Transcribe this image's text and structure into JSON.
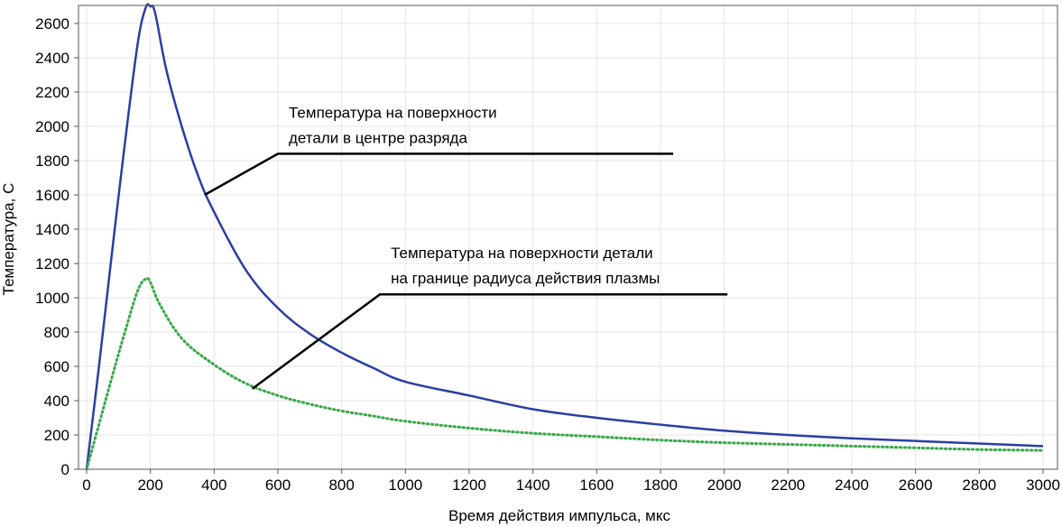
{
  "chart_data": {
    "type": "line",
    "title": "",
    "xlabel": "Время действия импульса, мкс",
    "ylabel": "Температура, С",
    "xlim": [
      0,
      3000
    ],
    "ylim": [
      0,
      2700
    ],
    "x_ticks": [
      "0",
      "200",
      "400",
      "600",
      "800",
      "1000",
      "1200",
      "1400",
      "1600",
      "1800",
      "2000",
      "2200",
      "2400",
      "2600",
      "2800",
      "3000"
    ],
    "y_ticks": [
      "0",
      "200",
      "400",
      "600",
      "800",
      "1000",
      "1200",
      "1400",
      "1600",
      "1800",
      "2000",
      "2200",
      "2400",
      "2600"
    ],
    "grid": true,
    "series": [
      {
        "color": "#2b3ea4",
        "style": "solid",
        "points": [
          [
            0,
            0
          ],
          [
            40,
            620
          ],
          [
            80,
            1270
          ],
          [
            120,
            1900
          ],
          [
            160,
            2480
          ],
          [
            185,
            2690
          ],
          [
            200,
            2700
          ],
          [
            215,
            2660
          ],
          [
            250,
            2330
          ],
          [
            300,
            1990
          ],
          [
            350,
            1710
          ],
          [
            400,
            1500
          ],
          [
            500,
            1160
          ],
          [
            600,
            940
          ],
          [
            700,
            790
          ],
          [
            800,
            680
          ],
          [
            900,
            590
          ],
          [
            1000,
            510
          ],
          [
            1200,
            430
          ],
          [
            1400,
            350
          ],
          [
            1600,
            300
          ],
          [
            1800,
            260
          ],
          [
            2000,
            225
          ],
          [
            2200,
            200
          ],
          [
            2400,
            180
          ],
          [
            2600,
            165
          ],
          [
            2800,
            150
          ],
          [
            3000,
            135
          ]
        ]
      },
      {
        "color": "#3aa84a",
        "style": "dotted",
        "points": [
          [
            0,
            0
          ],
          [
            40,
            270
          ],
          [
            80,
            540
          ],
          [
            120,
            800
          ],
          [
            160,
            1040
          ],
          [
            185,
            1110
          ],
          [
            200,
            1090
          ],
          [
            230,
            960
          ],
          [
            300,
            760
          ],
          [
            400,
            610
          ],
          [
            500,
            500
          ],
          [
            600,
            430
          ],
          [
            700,
            380
          ],
          [
            800,
            340
          ],
          [
            900,
            310
          ],
          [
            1000,
            280
          ],
          [
            1200,
            240
          ],
          [
            1400,
            210
          ],
          [
            1600,
            190
          ],
          [
            1800,
            170
          ],
          [
            2000,
            155
          ],
          [
            2200,
            145
          ],
          [
            2400,
            135
          ],
          [
            2600,
            125
          ],
          [
            2800,
            115
          ],
          [
            3000,
            110
          ]
        ]
      }
    ],
    "annotations": [
      {
        "lines": [
          "Температура на поверхности",
          "детали в центре разряда"
        ],
        "target": [
          370,
          1600
        ],
        "elbow": [
          600,
          1840
        ],
        "end": [
          1840,
          1840
        ]
      },
      {
        "lines": [
          "Температура на поверхности детали",
          "на границе радиуса действия плазмы"
        ],
        "target": [
          520,
          470
        ],
        "elbow": [
          920,
          1020
        ],
        "end": [
          2010,
          1020
        ]
      }
    ]
  }
}
